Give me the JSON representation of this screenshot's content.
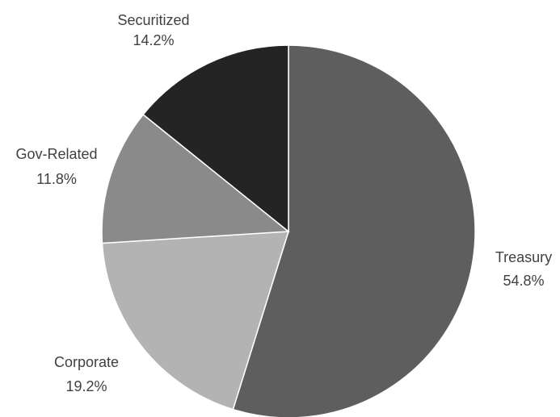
{
  "chart_data": {
    "type": "pie",
    "title": "",
    "start_angle_deg": 0,
    "direction": "clockwise",
    "legend": "none",
    "slices": [
      {
        "name": "Treasury",
        "value": 54.8,
        "value_label": "54.8%",
        "color": "#5e5e5e"
      },
      {
        "name": "Corporate",
        "value": 19.2,
        "value_label": "19.2%",
        "color": "#b3b3b3"
      },
      {
        "name": "Gov-Related",
        "value": 11.8,
        "value_label": "11.8%",
        "color": "#8a8a8a"
      },
      {
        "name": "Securitized",
        "value": 14.2,
        "value_label": "14.2%",
        "color": "#242424"
      }
    ]
  }
}
